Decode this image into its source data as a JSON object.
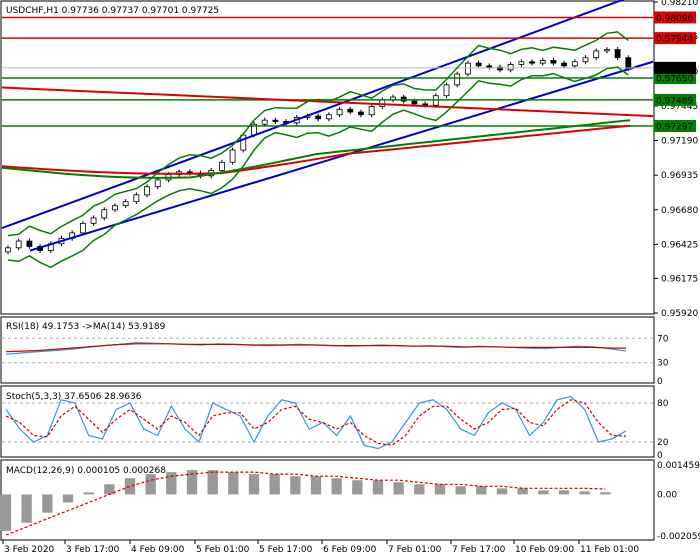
{
  "header": {
    "symbol_line": "USDCHF,H1  0.97736 0.97737 0.97701 0.97725"
  },
  "colors": {
    "channel": "#0000cc",
    "resistance": "#dd0000",
    "support": "#008000",
    "bollinger": "#008000",
    "candle_bull": "#ffffff",
    "candle_bear": "#000000",
    "current_price_bg": "#000000",
    "rsi_line": "#3399cc",
    "rsi_ma": "#cc0000",
    "stoch_main": "#3399cc",
    "stoch_signal": "#cc0000",
    "macd_hist": "#999999",
    "macd_signal": "#cc0000"
  },
  "chart_data": [
    {
      "type": "candlestick",
      "panel": "price",
      "title": "USDCHF,H1",
      "ohlc_last": {
        "open": 0.97736,
        "high": 0.97737,
        "low": 0.97701,
        "close": 0.97725
      },
      "ylim": [
        0.9592,
        0.9821
      ],
      "y_ticks": [
        "0.98210",
        "0.97955",
        "0.97700",
        "0.97445",
        "0.97190",
        "0.96935",
        "0.96680",
        "0.96425",
        "0.96175",
        "0.95920"
      ],
      "x_ticks": [
        "3 Feb 2020",
        "3 Feb 17:00",
        "4 Feb 09:00",
        "5 Feb 01:00",
        "5 Feb 17:00",
        "6 Feb 09:00",
        "7 Feb 01:00",
        "7 Feb 17:00",
        "10 Feb 09:00",
        "11 Feb 01:00"
      ],
      "levels": {
        "resistance": [
          "0.98096",
          "0.97944"
        ],
        "support": [
          "0.97650",
          "0.97489",
          "0.97297"
        ],
        "current_price": "0.97725"
      },
      "close_path": [
        0.964,
        0.9645,
        0.9641,
        0.9638,
        0.9643,
        0.9647,
        0.9651,
        0.9658,
        0.9662,
        0.9668,
        0.9671,
        0.9674,
        0.9679,
        0.9685,
        0.969,
        0.9694,
        0.9696,
        0.9695,
        0.9693,
        0.9697,
        0.9703,
        0.9712,
        0.9723,
        0.9731,
        0.9734,
        0.9733,
        0.9732,
        0.9736,
        0.9737,
        0.9735,
        0.9738,
        0.9742,
        0.974,
        0.9738,
        0.9744,
        0.9749,
        0.9751,
        0.9748,
        0.9746,
        0.9745,
        0.9752,
        0.976,
        0.9768,
        0.9776,
        0.9774,
        0.9773,
        0.9771,
        0.9775,
        0.9777,
        0.9776,
        0.9778,
        0.9776,
        0.9774,
        0.9777,
        0.978,
        0.9785,
        0.9786,
        0.978,
        0.9772
      ]
    },
    {
      "type": "line",
      "panel": "rsi",
      "label": "RSI(18) 49.1753 ->MA(14) 53.9189",
      "ylim": [
        0,
        100
      ],
      "y_ticks": [
        "70",
        "30",
        "0"
      ],
      "series": [
        {
          "name": "RSI(18)",
          "values": [
            44,
            46,
            48,
            50,
            52,
            55,
            58,
            60,
            63,
            62,
            61,
            60,
            59,
            61,
            60,
            59,
            58,
            59,
            60,
            59,
            58,
            57,
            58,
            59,
            58,
            57,
            58,
            56,
            55,
            57,
            56,
            55,
            54,
            53,
            55,
            57,
            56,
            53,
            49
          ]
        },
        {
          "name": "MA(14)",
          "values": [
            48,
            49,
            50,
            52,
            54,
            56,
            58,
            60,
            61,
            61,
            61,
            60,
            60,
            60,
            60,
            59,
            59,
            59,
            59,
            59,
            58,
            58,
            58,
            58,
            58,
            57,
            57,
            57,
            56,
            56,
            56,
            55,
            55,
            55,
            55,
            55,
            55,
            54,
            54
          ]
        }
      ]
    },
    {
      "type": "line",
      "panel": "stochastic",
      "label": "Stoch(5,3,3) 37.6506 28.9636",
      "ylim": [
        0,
        100
      ],
      "y_ticks": [
        "80",
        "20",
        "0"
      ],
      "series": [
        {
          "name": "%K",
          "values": [
            70,
            40,
            20,
            30,
            85,
            80,
            30,
            25,
            70,
            80,
            40,
            30,
            75,
            40,
            20,
            80,
            70,
            60,
            20,
            60,
            85,
            80,
            40,
            50,
            30,
            60,
            15,
            10,
            20,
            50,
            80,
            85,
            70,
            40,
            30,
            65,
            80,
            70,
            30,
            50,
            85,
            90,
            70,
            20,
            25,
            37
          ]
        },
        {
          "name": "%D",
          "values": [
            60,
            50,
            30,
            28,
            60,
            75,
            55,
            35,
            55,
            70,
            55,
            40,
            60,
            50,
            30,
            60,
            65,
            65,
            40,
            50,
            70,
            75,
            55,
            50,
            40,
            50,
            30,
            18,
            15,
            30,
            60,
            75,
            75,
            55,
            40,
            50,
            70,
            72,
            50,
            45,
            70,
            85,
            80,
            50,
            30,
            29
          ]
        }
      ]
    },
    {
      "type": "bar",
      "panel": "macd",
      "label": "MACD(12,26,9) 0.000105 0.000268",
      "y_ticks": [
        "0.001459",
        "0.00",
        "-0.002059"
      ],
      "ylim": [
        -0.00215,
        0.00155
      ],
      "series": [
        {
          "name": "MACD",
          "values": [
            -0.0018,
            -0.0014,
            -0.0009,
            -0.0004,
            0.0001,
            0.0005,
            0.0008,
            0.001,
            0.0011,
            0.0012,
            0.0012,
            0.0011,
            0.001,
            0.001,
            0.0009,
            0.0009,
            0.0008,
            0.0007,
            0.0007,
            0.0006,
            0.0005,
            0.0005,
            0.0004,
            0.0004,
            0.0003,
            0.0003,
            0.0002,
            0.0002,
            0.00015,
            0.000105
          ]
        },
        {
          "name": "Signal",
          "values": [
            -0.002,
            -0.0016,
            -0.0012,
            -0.0008,
            -0.0004,
            0.0,
            0.0004,
            0.0007,
            0.0009,
            0.001,
            0.0011,
            0.0011,
            0.0011,
            0.001,
            0.001,
            0.0009,
            0.0009,
            0.0008,
            0.0007,
            0.0007,
            0.0006,
            0.0005,
            0.0005,
            0.0004,
            0.0004,
            0.0003,
            0.0003,
            0.0003,
            0.0003,
            0.000268
          ]
        }
      ]
    }
  ]
}
